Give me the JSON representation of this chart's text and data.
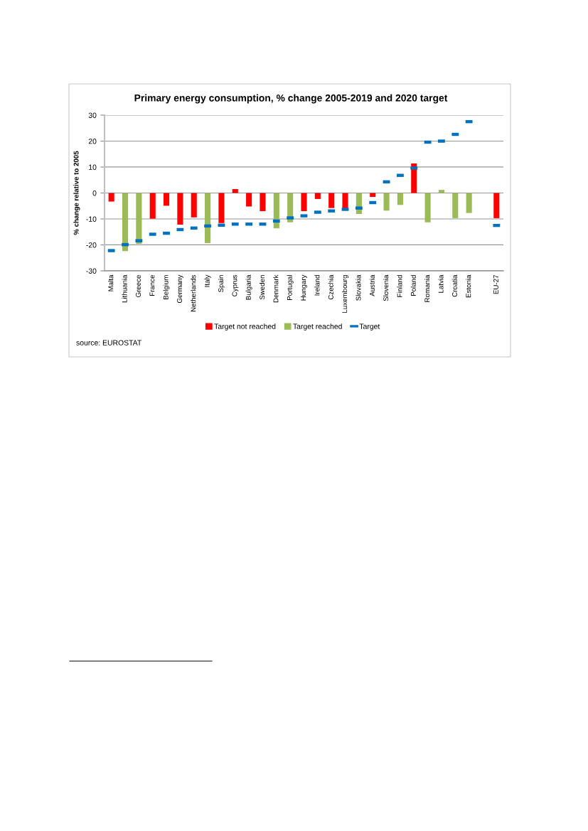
{
  "chart_data": {
    "type": "bar",
    "title": "Primary energy consumption, % change 2005-2019 and 2020 target",
    "ylabel": "% change relative to 2005",
    "categories": [
      "Malta",
      "Lithuania",
      "Greece",
      "France",
      "Belgium",
      "Germany",
      "Netherlands",
      "Italy",
      "Spain",
      "Cyprus",
      "Bulgaria",
      "Sweden",
      "Denmark",
      "Portugal",
      "Hungary",
      "Ireland",
      "Czechia",
      "Luxembourg",
      "Slovakia",
      "Austria",
      "Slovenia",
      "Finland",
      "Poland",
      "Romania",
      "Latvia",
      "Croatia",
      "Estonia",
      null,
      "EU-27"
    ],
    "stacked": true,
    "series": [
      {
        "name": "Target not reached",
        "color": "#ff0000",
        "values": [
          -3.3,
          null,
          null,
          -9.9,
          -4.9,
          -12.2,
          -9.4,
          null,
          -11.6,
          1.5,
          -5.2,
          -7.0,
          null,
          null,
          -7.0,
          -2.3,
          -5.8,
          -6.1,
          null,
          -1.5,
          null,
          null,
          11.4,
          null,
          null,
          null,
          null,
          null,
          -9.7
        ]
      },
      {
        "name": "Target reached",
        "color": "#9bbb59",
        "values": [
          null,
          -22.4,
          -19.6,
          null,
          null,
          null,
          null,
          -19.3,
          null,
          null,
          null,
          null,
          -13.6,
          -11.3,
          null,
          null,
          null,
          null,
          -8.1,
          null,
          -6.8,
          -4.6,
          null,
          -11.3,
          1.2,
          -9.7,
          -7.7,
          null,
          null
        ]
      },
      {
        "name": "Target",
        "type": "scatter",
        "color": "#0070c0",
        "values": [
          -22.2,
          -19.9,
          -18.4,
          -15.9,
          -15.5,
          -14.1,
          -13.5,
          -12.7,
          -12.4,
          -12.0,
          -12.0,
          -12.0,
          -10.8,
          -9.6,
          -8.8,
          -7.4,
          -6.9,
          -6.3,
          -5.8,
          -3.7,
          4.3,
          6.8,
          9.6,
          19.6,
          20.0,
          22.6,
          27.5,
          null,
          -12.5
        ]
      }
    ],
    "ylim": [
      -30,
      30
    ],
    "yticks": [
      -30,
      -20,
      -10,
      0,
      10,
      20,
      30
    ],
    "grid": "y",
    "legend": "bottom",
    "annotations": [
      "source: EUROSTAT"
    ]
  }
}
